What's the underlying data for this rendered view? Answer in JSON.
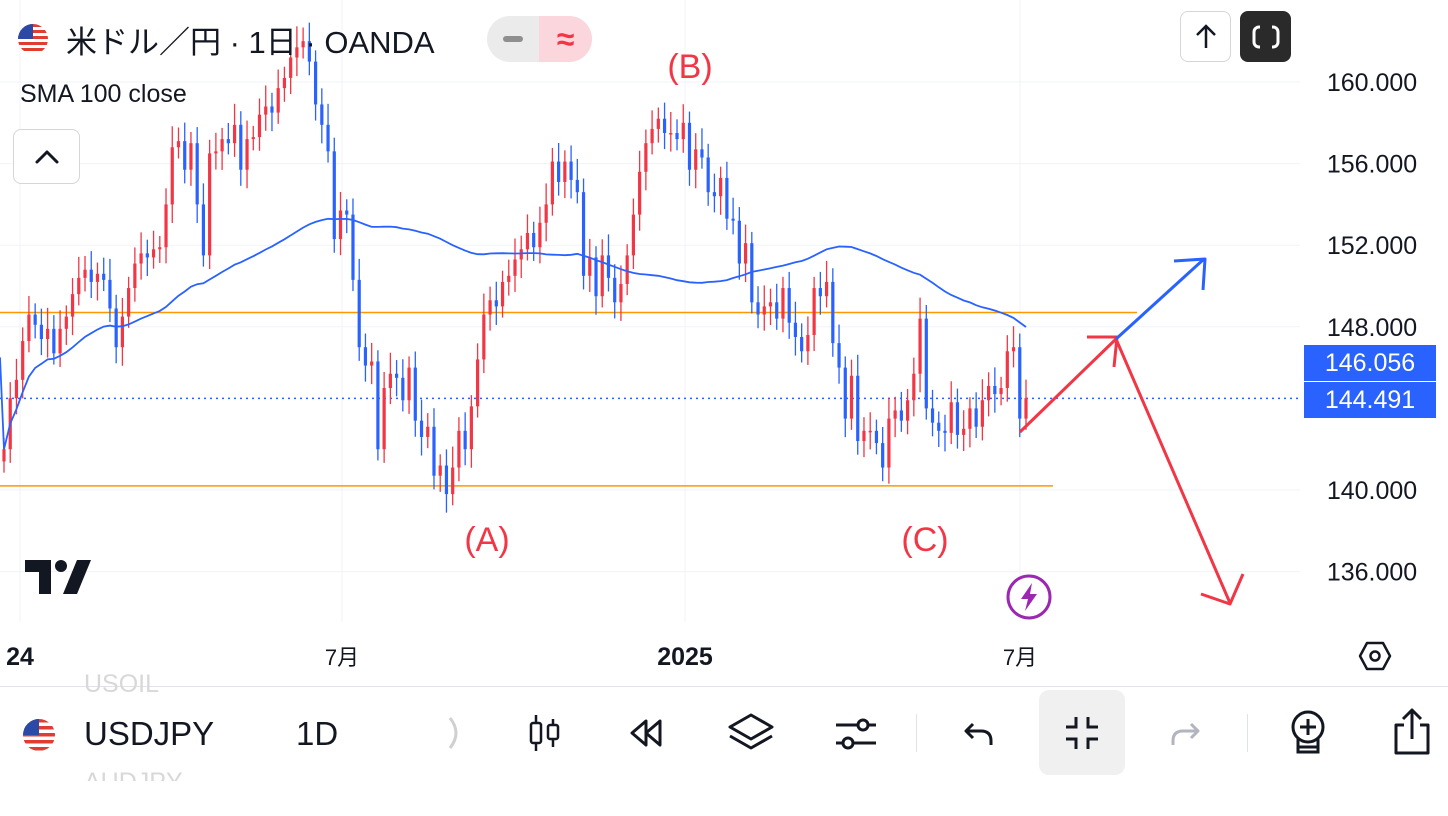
{
  "header": {
    "title": "米ドル／円 · 1日 · OANDA",
    "indicator_label": "SMA 100 close"
  },
  "price_labels": {
    "sma_value": "146.056",
    "last_price": "144.491"
  },
  "bottom_bar": {
    "symbol": "USDJPY",
    "timeframe": "1D",
    "ghost_above": "USOIL",
    "ghost_below": "AUDJPY"
  },
  "colors": {
    "up_candle": "#f23645",
    "down_candle": "#2962ff",
    "sma": "#2962ff",
    "support_resistance": "#ff9800",
    "annotation_red": "#f23645",
    "annotation_blue": "#2962ff",
    "price_label_bg": "#2962ff"
  },
  "icons": [
    "flag-us-icon",
    "chevron-up-icon",
    "arrow-up-icon",
    "fullscreen-icon",
    "tradingview-logo-icon",
    "lightning-icon",
    "settings-hex-icon",
    "candles-icon",
    "replay-icon",
    "layers-icon",
    "sliders-icon",
    "undo-icon",
    "collapse-icon",
    "redo-icon",
    "add-alert-icon",
    "share-icon"
  ],
  "chart_data": {
    "type": "candlestick",
    "symbol": "米ドル／円",
    "interval": "1日",
    "source": "OANDA",
    "y_ticks": [
      "160.000",
      "156.000",
      "152.000",
      "148.000",
      "140.000",
      "136.000"
    ],
    "x_ticks": [
      "24",
      "7月",
      "2025",
      "7月"
    ],
    "ylim": [
      133.5,
      163.5
    ],
    "grid": true,
    "indicator": {
      "name": "SMA 100 close"
    },
    "horizontal_lines": [
      {
        "price": 148.7,
        "color": "#ff9800"
      },
      {
        "price": 140.2,
        "color": "#ff9800"
      },
      {
        "price": 144.491,
        "style": "dotted",
        "color": "#2962ff"
      }
    ],
    "wave_labels": [
      {
        "text": "(A)",
        "price": 139.8
      },
      {
        "text": "(B)",
        "price": 161.6
      },
      {
        "text": "(C)",
        "price": 139.9
      }
    ],
    "closes": [
      142.0,
      144.5,
      145.4,
      147.3,
      148.6,
      148.1,
      147.4,
      147.9,
      146.7,
      147.9,
      148.5,
      149.6,
      150.4,
      150.8,
      150.2,
      150.6,
      150.3,
      148.9,
      147.0,
      148.5,
      149.9,
      151.1,
      151.6,
      151.4,
      151.8,
      151.9,
      154.0,
      156.8,
      157.1,
      155.7,
      157.0,
      154.0,
      151.5,
      156.5,
      156.6,
      157.2,
      157.0,
      157.9,
      155.7,
      157.2,
      157.3,
      158.4,
      158.8,
      158.5,
      159.7,
      160.2,
      161.2,
      161.7,
      162.0,
      161.0,
      158.9,
      157.9,
      156.6,
      152.3,
      153.7,
      153.5,
      150.3,
      147.0,
      146.1,
      146.3,
      142.0,
      145.0,
      145.7,
      145.5,
      144.4,
      146.0,
      143.4,
      142.6,
      143.1,
      140.7,
      141.2,
      139.8,
      141.1,
      142.9,
      142.0,
      144.1,
      146.4,
      148.6,
      149.3,
      149.0,
      150.2,
      150.5,
      151.3,
      151.8,
      152.6,
      151.9,
      153.1,
      154.0,
      156.1,
      155.1,
      156.1,
      155.2,
      154.6,
      150.5,
      151.4,
      149.5,
      151.5,
      150.4,
      149.2,
      150.1,
      151.5,
      153.5,
      155.6,
      157.0,
      157.7,
      158.2,
      157.5,
      157.5,
      157.2,
      158.0,
      155.7,
      156.7,
      156.3,
      154.6,
      154.4,
      155.3,
      153.3,
      153.2,
      151.1,
      152.1,
      149.2,
      148.6,
      149.0,
      149.2,
      148.4,
      149.9,
      148.2,
      147.5,
      146.8,
      147.6,
      149.9,
      149.5,
      150.2,
      147.2,
      146.0,
      143.5,
      145.6,
      142.4,
      142.9,
      142.9,
      142.3,
      141.1,
      143.5,
      143.9,
      143.4,
      144.4,
      145.7,
      148.4,
      144.0,
      143.3,
      142.9,
      142.8,
      144.3,
      142.7,
      143.0,
      144.0,
      143.1,
      144.4,
      145.1,
      144.7,
      145.0,
      146.8,
      147.0,
      143.5,
      144.5
    ]
  }
}
